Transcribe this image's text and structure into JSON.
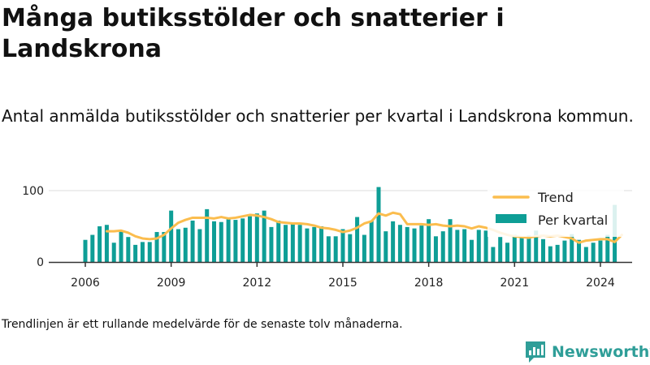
{
  "title": "Många butiksstölder och snatterier i Landskrona",
  "subtitle": "Antal anmälda butiksstölder och snatterier per kvartal i Landskrona kommun.",
  "note": "Trendlinjen är ett rullande medelvärde för de senaste tolv månaderna.",
  "brand": {
    "name": "Newsworthy",
    "logo_icon": "newsworthy-logo-icon"
  },
  "colors": {
    "bars": "#0e9e96",
    "trend": "#fbbd4e",
    "axis": "#333333",
    "grid": "#dddddd",
    "brand": "#2f9e98"
  },
  "chart_data": {
    "type": "bar",
    "x_unit": "quarter",
    "y_ticks": [
      0,
      100
    ],
    "ylim": [
      0,
      105
    ],
    "x_tick_labels": [
      "2006",
      "2009",
      "2012",
      "2015",
      "2018",
      "2021",
      "2024"
    ],
    "grid": "horizontal",
    "legend_position": "top-right",
    "series": [
      {
        "name": "Per kvartal",
        "kind": "bar",
        "start": "2006 Q1",
        "values": [
          31,
          38,
          50,
          52,
          27,
          43,
          35,
          24,
          28,
          28,
          42,
          42,
          72,
          46,
          48,
          58,
          46,
          74,
          57,
          56,
          60,
          59,
          61,
          64,
          68,
          72,
          49,
          58,
          52,
          54,
          52,
          47,
          49,
          50,
          36,
          36,
          46,
          39,
          63,
          38,
          58,
          105,
          43,
          57,
          52,
          49,
          47,
          51,
          60,
          36,
          43,
          60,
          45,
          46,
          31,
          45,
          44,
          21,
          35,
          27,
          38,
          36,
          37,
          44,
          32,
          22,
          24,
          30,
          39,
          31,
          21,
          27,
          30,
          38,
          80
        ]
      },
      {
        "name": "Trend",
        "kind": "line",
        "start": "2006 Q4",
        "values": [
          43,
          43,
          44,
          41,
          36,
          33,
          32,
          33,
          38,
          47,
          55,
          59,
          62,
          62,
          62,
          61,
          63,
          61,
          62,
          64,
          66,
          65,
          63,
          60,
          56,
          55,
          54,
          54,
          53,
          51,
          48,
          47,
          45,
          42,
          44,
          48,
          54,
          57,
          68,
          65,
          69,
          67,
          53,
          53,
          53,
          52,
          53,
          51,
          50,
          51,
          50,
          47,
          50,
          48,
          45,
          41,
          38,
          36,
          35,
          34,
          36,
          37,
          36,
          37,
          35,
          33,
          27,
          30,
          31,
          32,
          32,
          28,
          38
        ]
      }
    ]
  }
}
